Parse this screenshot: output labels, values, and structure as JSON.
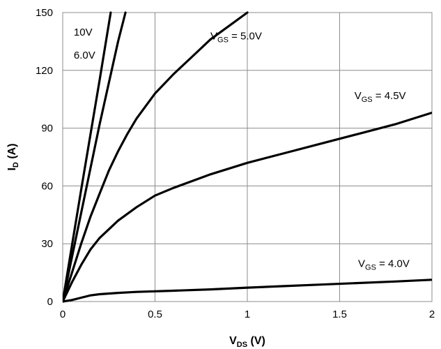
{
  "chart_data": {
    "type": "line",
    "title": "",
    "xlabel": "V",
    "xlabel_sub": "DS",
    "xlabel_unit": " (V)",
    "ylabel": "I",
    "ylabel_sub": "D",
    "ylabel_unit": " (A)",
    "xlim": [
      0,
      2
    ],
    "ylim": [
      0,
      150
    ],
    "xticks": [
      0,
      0.5,
      1,
      1.5,
      2
    ],
    "xtick_labels": [
      "0",
      "0.5",
      "1",
      "1.5",
      "2"
    ],
    "yticks": [
      0,
      30,
      60,
      90,
      120,
      150
    ],
    "ytick_labels": [
      "0",
      "30",
      "60",
      "90",
      "120",
      "150"
    ],
    "grid": true,
    "series": [
      {
        "name": "10V",
        "x": [
          0,
          0.1,
          0.2,
          0.26
        ],
        "y": [
          0,
          58,
          115,
          150
        ]
      },
      {
        "name": "6.0V",
        "x": [
          0,
          0.1,
          0.2,
          0.3,
          0.34
        ],
        "y": [
          0,
          46,
          92,
          135,
          150
        ]
      },
      {
        "name": "5.0V",
        "x": [
          0,
          0.05,
          0.1,
          0.15,
          0.2,
          0.25,
          0.3,
          0.35,
          0.4,
          0.5,
          0.6,
          0.7,
          0.8,
          0.9,
          1.0
        ],
        "y": [
          0,
          15,
          30,
          44,
          56,
          68,
          78,
          87,
          95,
          108,
          118,
          127,
          136,
          143,
          150
        ]
      },
      {
        "name": "4.5V",
        "x": [
          0,
          0.05,
          0.1,
          0.15,
          0.2,
          0.3,
          0.4,
          0.5,
          0.6,
          0.8,
          1.0,
          1.2,
          1.4,
          1.6,
          1.8,
          2.0
        ],
        "y": [
          0,
          10,
          19,
          27,
          33,
          42,
          49,
          55,
          59,
          66,
          72,
          77,
          82,
          87,
          92,
          98
        ]
      },
      {
        "name": "4.0V",
        "x": [
          0,
          0.05,
          0.1,
          0.15,
          0.2,
          0.3,
          0.4,
          0.6,
          0.8,
          1.0,
          1.2,
          1.4,
          1.6,
          1.8,
          2.0
        ],
        "y": [
          0,
          0.8,
          2,
          3.2,
          3.8,
          4.5,
          5,
          5.6,
          6.3,
          7.2,
          8.0,
          8.8,
          9.6,
          10.4,
          11.3
        ]
      }
    ],
    "annotations": [
      {
        "text": "10V",
        "x": 0.06,
        "y": 138
      },
      {
        "text": "6.0V",
        "x": 0.06,
        "y": 126
      },
      {
        "prefix": "V",
        "sub": "GS",
        "text": " = 5.0V",
        "x": 0.8,
        "y": 136
      },
      {
        "prefix": "V",
        "sub": "GS",
        "text": " = 4.5V",
        "x": 1.58,
        "y": 105
      },
      {
        "prefix": "V",
        "sub": "GS",
        "text": " = 4.0V",
        "x": 1.6,
        "y": 18
      }
    ]
  }
}
